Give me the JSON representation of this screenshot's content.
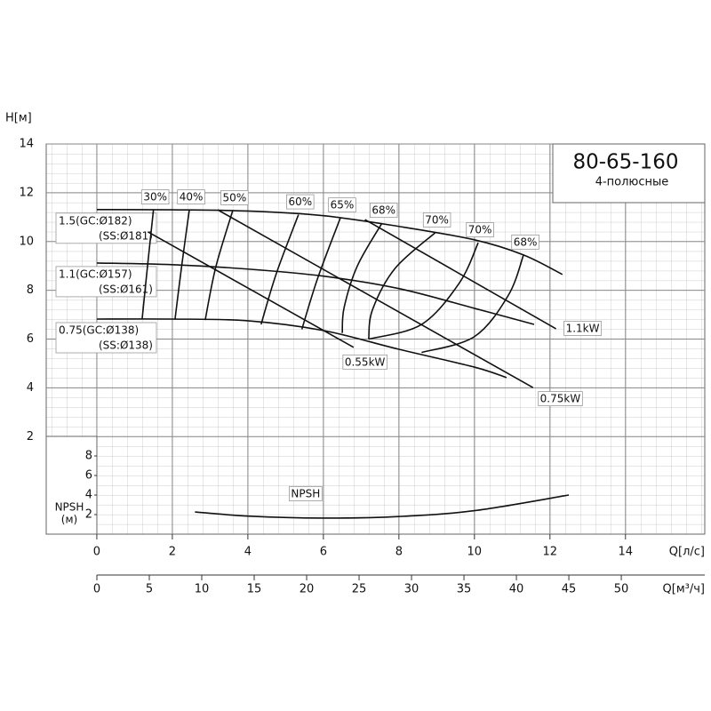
{
  "chart_data": {
    "type": "pump_curve",
    "title": "80-65-160",
    "subtitle": "4-полюсные",
    "y_label": "H[м]",
    "x_label": "Q[л/с]",
    "x2_label": "Q[м³/ч]",
    "npsh_label": "NPSH",
    "npsh_axis_label": [
      "NPSH",
      "(м)"
    ],
    "xlim": [
      -1.34,
      16.1
    ],
    "xticks": [
      0,
      2,
      4,
      6,
      8,
      10,
      12,
      14
    ],
    "x2lim": [
      -4.83,
      57.96
    ],
    "x2ticks": [
      0,
      5,
      10,
      15,
      20,
      25,
      30,
      35,
      40,
      45,
      50
    ],
    "ylim": [
      -2,
      14
    ],
    "yticks": [
      2,
      4,
      6,
      8,
      10,
      12,
      14
    ],
    "npsh_ylim": [
      0,
      10
    ],
    "npsh_yticks": [
      2,
      4,
      6,
      8
    ],
    "grid": true,
    "color": "#111111",
    "head_curves": [
      {
        "labels": [
          "1.5(GC:Ø182)",
          "(SS:Ø181)"
        ],
        "x": [
          0,
          2,
          4,
          6,
          8,
          10,
          11.3,
          12.33
        ],
        "y": [
          11.31,
          11.3,
          11.25,
          11.06,
          10.62,
          10.07,
          9.45,
          8.65
        ]
      },
      {
        "labels": [
          "1.1(GC:Ø157)",
          "(SS:Ø161)"
        ],
        "x": [
          0,
          2,
          4,
          6,
          8,
          10,
          11.58
        ],
        "y": [
          9.12,
          9.05,
          8.87,
          8.58,
          8.07,
          7.26,
          6.6
        ]
      },
      {
        "labels": [
          "0.75(GC:Ø138)",
          "(SS:Ø138)"
        ],
        "x": [
          0,
          2,
          4,
          6,
          8,
          10,
          10.85
        ],
        "y": [
          6.82,
          6.82,
          6.75,
          6.35,
          5.58,
          4.85,
          4.42
        ]
      }
    ],
    "power_lines": [
      {
        "label": "0.55kW",
        "x": [
          1.35,
          6.8
        ],
        "y": [
          10.4,
          5.66
        ]
      },
      {
        "label": "1.1kW",
        "x": [
          7.1,
          12.16
        ],
        "y": [
          10.9,
          6.42
        ]
      },
      {
        "label": "0.75kW",
        "x": [
          3.2,
          11.55
        ],
        "y": [
          11.3,
          4.01
        ]
      }
    ],
    "efficiency": [
      {
        "label": "30%",
        "x": [
          1.5,
          1.35,
          1.2
        ],
        "y": [
          11.3,
          9.1,
          6.82
        ]
      },
      {
        "label": "40%",
        "x": [
          2.45,
          2.25,
          2.07
        ],
        "y": [
          11.3,
          9.03,
          6.8
        ]
      },
      {
        "label": "50%",
        "x": [
          3.6,
          3.15,
          2.87
        ],
        "y": [
          11.27,
          8.95,
          6.78
        ]
      },
      {
        "label": "60%",
        "x": [
          5.34,
          4.75,
          4.35
        ],
        "y": [
          11.1,
          8.67,
          6.6
        ]
      },
      {
        "label": "65%",
        "x": [
          6.45,
          5.85,
          5.43
        ],
        "y": [
          10.97,
          8.5,
          6.4
        ]
      },
      {
        "label": "68%",
        "x": [
          7.55,
          6.9,
          6.55,
          6.5
        ],
        "y": [
          10.75,
          9.0,
          7.3,
          6.25
        ]
      },
      {
        "label": "70%",
        "x": [
          8.96,
          7.9,
          7.3,
          7.2
        ],
        "y": [
          10.36,
          8.9,
          7.2,
          6.0
        ]
      },
      {
        "label": "70%",
        "x": [
          10.1,
          9.6,
          8.6,
          7.2
        ],
        "y": [
          9.95,
          8.3,
          6.6,
          6.0
        ]
      },
      {
        "label": "68%",
        "x": [
          11.3,
          10.9,
          10.0,
          8.6
        ],
        "y": [
          9.45,
          7.8,
          6.1,
          5.45
        ]
      }
    ],
    "npsh": {
      "x": [
        2.6,
        4,
        6,
        8,
        10,
        12.5
      ],
      "y": [
        2.27,
        1.85,
        1.64,
        1.8,
        2.4,
        4.0
      ]
    }
  }
}
